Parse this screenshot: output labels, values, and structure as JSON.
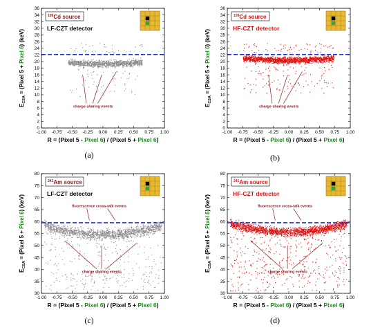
{
  "figure": {
    "captions": [
      "(a)",
      "(b)",
      "(c)",
      "(d)"
    ]
  },
  "chart_data": [
    {
      "type": "scatter",
      "title": "",
      "xlabel_parts": [
        "R = (Pixel 5 - ",
        "Pixel 6",
        ") / (Pixel 5 + ",
        "Pixel 6",
        ")"
      ],
      "ylabel_parts": [
        "E",
        "CSA",
        " = (Pixel 5 + ",
        "Pixel 6",
        ") (keV)"
      ],
      "xlim": [
        -1.0,
        1.0
      ],
      "ylim": [
        0,
        36
      ],
      "xticks": [
        "-1.00",
        "-0.75",
        "-0.50",
        "-0.25",
        "0.00",
        "0.25",
        "0.50",
        "0.75",
        "1.00"
      ],
      "yticks": [
        "0",
        "2",
        "4",
        "6",
        "8",
        "10",
        "12",
        "14",
        "16",
        "18",
        "20",
        "22",
        "24",
        "26",
        "28",
        "30",
        "32",
        "34",
        "36"
      ],
      "source_sup": "109",
      "source_label": "Cd source",
      "source_color": "#8b1a1a",
      "detector_label": "LF-CZT detector",
      "detector_color": "#000000",
      "point_color": "#8a8a8a",
      "reference_line_y": 22.1,
      "reference_line_color": "#1f2fd6",
      "grid": false,
      "annotations": [
        "charge sharing events"
      ],
      "series": [
        {
          "points_summary": {
            "peak_keV": 19.5,
            "R_range": [
              -0.55,
              0.65
            ],
            "tail_min_keV": 8
          }
        }
      ],
      "caption": "(a)"
    },
    {
      "type": "scatter",
      "title": "",
      "xlabel_parts": [
        "R = (Pixel 5 - ",
        "Pixel 6",
        ") / (Pixel 5 + ",
        "Pixel 6",
        ")"
      ],
      "ylabel_parts": [
        "E",
        "CSA",
        " = (Pixel 5 + ",
        "Pixel 6",
        ") (keV)"
      ],
      "xlim": [
        -1.0,
        1.0
      ],
      "ylim": [
        0,
        36
      ],
      "xticks": [
        "-1.00",
        "-0.75",
        "-0.50",
        "-0.25",
        "0.00",
        "0.25",
        "0.50",
        "0.75",
        "1.00"
      ],
      "yticks": [
        "0",
        "2",
        "4",
        "6",
        "8",
        "10",
        "12",
        "14",
        "16",
        "18",
        "20",
        "22",
        "24",
        "26",
        "28",
        "30",
        "32",
        "34",
        "36"
      ],
      "source_sup": "109",
      "source_label": "Cd source",
      "source_color": "#e01010",
      "detector_label": "HF-CZT detector",
      "detector_color": "#e01010",
      "point_color": "#e01010",
      "reference_line_y": 22.1,
      "reference_line_color": "#1f2fd6",
      "grid": false,
      "annotations": [
        "charge sharing events"
      ],
      "series": [
        {
          "points_summary": {
            "peak_keV": 20.5,
            "R_range": [
              -0.75,
              0.75
            ],
            "tail_min_keV": 8
          }
        }
      ],
      "caption": "(b)"
    },
    {
      "type": "scatter",
      "title": "",
      "xlabel_parts": [
        "R = (Pixel 5 - ",
        "Pixel 6",
        ") / (Pixel 5 + ",
        "Pixel 6",
        ")"
      ],
      "ylabel_parts": [
        "E",
        "CSA",
        " = (Pixel 5 + ",
        "Pixel 6",
        ") (keV)"
      ],
      "xlim": [
        -1.0,
        1.0
      ],
      "ylim": [
        30,
        80
      ],
      "xticks": [
        "-1.00",
        "-0.75",
        "-0.50",
        "-0.25",
        "0.00",
        "0.25",
        "0.50",
        "0.75",
        "1.00"
      ],
      "yticks": [
        "30",
        "35",
        "40",
        "45",
        "50",
        "55",
        "60",
        "65",
        "70",
        "75",
        "80"
      ],
      "source_sup": "241",
      "source_label": "Am source",
      "source_color": "#8b1a1a",
      "detector_label": "LF-CZT detector",
      "detector_color": "#000000",
      "point_color": "#8a8a8a",
      "reference_line_y": 59.5,
      "reference_line_color": "#1f2fd6",
      "grid": false,
      "annotations": [
        "fluorescence cross-talk events",
        "charge sharing events"
      ],
      "series": [
        {
          "points_summary": {
            "peak_keV": 55,
            "R_range": [
              -0.95,
              0.95
            ],
            "tail_min_keV": 30
          }
        }
      ],
      "caption": "(c)"
    },
    {
      "type": "scatter",
      "title": "",
      "xlabel_parts": [
        "R = (Pixel 5 - ",
        "Pixel 6",
        ") / (Pixel 5 + ",
        "Pixel 6",
        ")"
      ],
      "ylabel_parts": [
        "E",
        "CSA",
        " = (Pixel 5 + ",
        "Pixel 6",
        ") (keV)"
      ],
      "xlim": [
        -1.0,
        1.0
      ],
      "ylim": [
        30,
        80
      ],
      "xticks": [
        "-1.00",
        "-0.75",
        "-0.50",
        "-0.25",
        "0.00",
        "0.25",
        "0.50",
        "0.75",
        "1.00"
      ],
      "yticks": [
        "30",
        "35",
        "40",
        "45",
        "50",
        "55",
        "60",
        "65",
        "70",
        "75",
        "80"
      ],
      "source_sup": "241",
      "source_label": "Am source",
      "source_color": "#e01010",
      "detector_label": "HF-CZT detector",
      "detector_color": "#e01010",
      "point_color": "#e01010",
      "reference_line_y": 59.5,
      "reference_line_color": "#1f2fd6",
      "grid": false,
      "annotations": [
        "fluorescence cross-talk events",
        "charge sharing events"
      ],
      "series": [
        {
          "points_summary": {
            "peak_keV": 56,
            "R_range": [
              -0.95,
              0.9
            ],
            "tail_min_keV": 30
          }
        }
      ],
      "caption": "(d)"
    }
  ],
  "style": {
    "pixel6_color": "#1a8a1a",
    "inset_bg": "#e8b830",
    "inset_line": "#9a7410",
    "inset_black": "#000000",
    "inset_green": "#3aa040"
  }
}
